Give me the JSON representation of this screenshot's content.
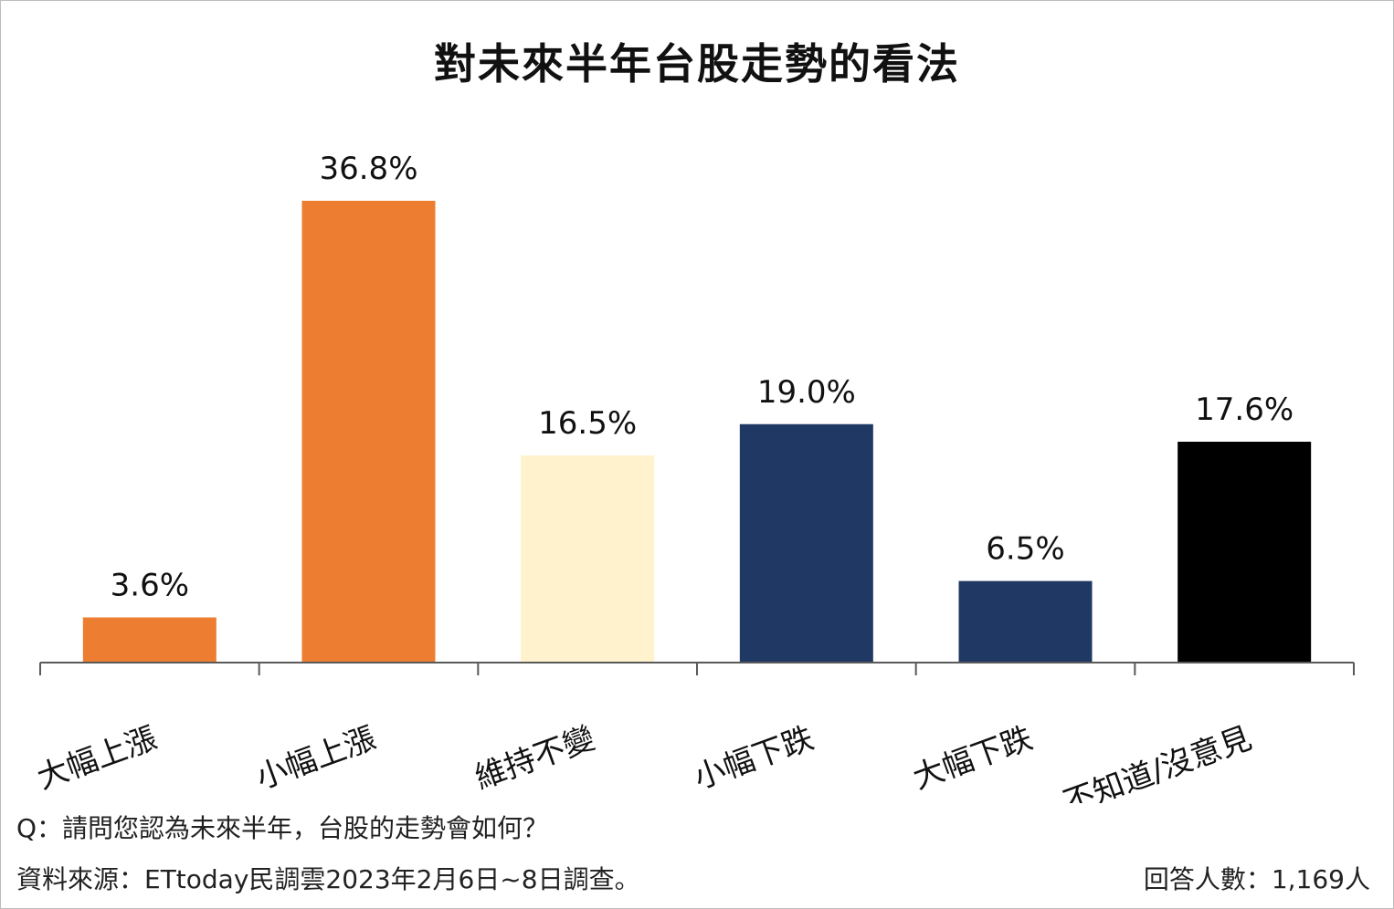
{
  "chart_data": {
    "type": "bar",
    "title": "對未來半年台股走勢的看法",
    "categories": [
      "大幅上漲",
      "小幅上漲",
      "維持不變",
      "小幅下跌",
      "大幅下跌",
      "不知道/沒意見"
    ],
    "values": [
      3.6,
      36.8,
      16.5,
      19.0,
      6.5,
      17.6
    ],
    "value_labels": [
      "3.6%",
      "36.8%",
      "16.5%",
      "19.0%",
      "6.5%",
      "17.6%"
    ],
    "colors": [
      "#ED7D31",
      "#ED7D31",
      "#FFF2CC",
      "#203864",
      "#203864",
      "#000000"
    ],
    "unit": "%",
    "grid": false,
    "legend": "none",
    "xlabel": "",
    "ylabel": ""
  },
  "notes": {
    "question": "Q：請問您認為未來半年，台股的走勢會如何？",
    "source": "資料來源：ETtoday民調雲2023年2月6日~8日調查。",
    "respondents": "回答人數：1,169人"
  }
}
